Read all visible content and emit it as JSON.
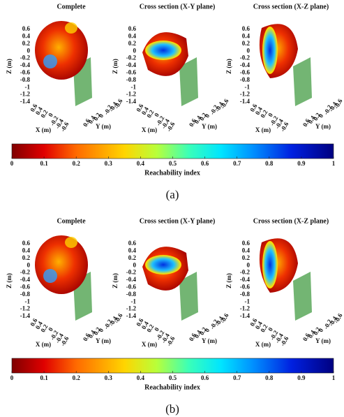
{
  "panels": [
    {
      "label": "(a)",
      "plots": [
        {
          "title": "Complete"
        },
        {
          "title": "Cross section (X-Y plane)"
        },
        {
          "title": "Cross section (X-Z plane)"
        }
      ]
    },
    {
      "label": "(b)",
      "plots": [
        {
          "title": "Complete"
        },
        {
          "title": "Cross section (X-Y plane)"
        },
        {
          "title": "Cross section (X-Z plane)"
        }
      ]
    }
  ],
  "axes": {
    "x_label": "X (m)",
    "y_label": "Y (m)",
    "z_label": "Z (m)",
    "zticks": [
      0.6,
      0.4,
      0.2,
      0,
      -0.2,
      -0.4,
      -0.6,
      -0.8,
      -1,
      -1.2,
      -1.4
    ],
    "xticks": [
      0.6,
      0.4,
      0.2,
      0,
      -0.2,
      -0.4,
      -0.6
    ],
    "yticks": [
      0.6,
      0.4,
      0.2,
      0,
      -0.2,
      -0.4,
      -0.6
    ]
  },
  "colorbar": {
    "label": "Reachability index",
    "lim": [
      0,
      1
    ],
    "ticks": [
      0,
      0.1,
      0.2,
      0.3,
      0.4,
      0.5,
      0.6,
      0.7,
      0.8,
      0.9,
      1
    ]
  }
}
